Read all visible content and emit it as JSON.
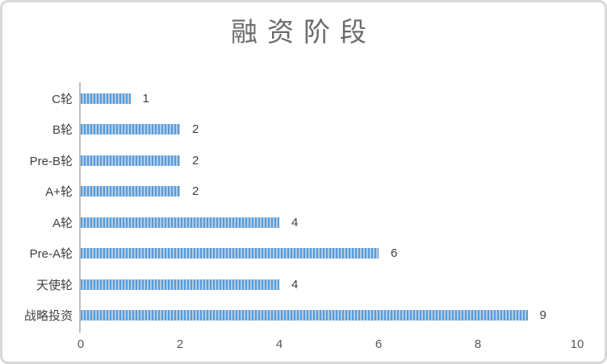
{
  "title": "融资阶段",
  "chart_data": {
    "type": "bar",
    "orientation": "horizontal",
    "title": "融资阶段",
    "xlabel": "",
    "ylabel": "",
    "categories": [
      "C轮",
      "B轮",
      "Pre-B轮",
      "A+轮",
      "A轮",
      "Pre-A轮",
      "天使轮",
      "战略投资"
    ],
    "values": [
      1,
      2,
      2,
      2,
      4,
      6,
      4,
      9
    ],
    "data_labels": [
      "1",
      "2",
      "2",
      "2",
      "4",
      "6",
      "4",
      "9"
    ],
    "xlim": [
      0,
      10
    ],
    "x_ticks": [
      0,
      2,
      4,
      6,
      8,
      10
    ],
    "grid": "off",
    "legend_position": "none"
  },
  "colors": {
    "bar_stripe_dark": "#5B9BD5",
    "bar_stripe_light": "#ADCDEB",
    "axis_line": "#BFBFBF",
    "title_text": "#6A6A6A",
    "label_text": "#404040",
    "tick_text": "#595959",
    "card_border": "#D9D9D9",
    "background": "#FFFFFF"
  }
}
